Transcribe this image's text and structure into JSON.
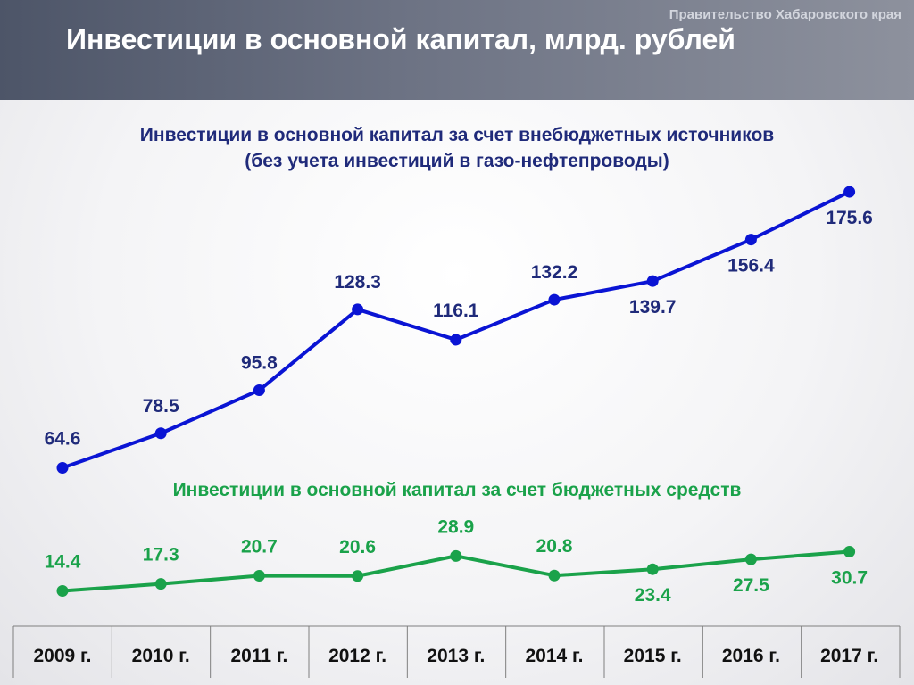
{
  "header": {
    "organization": "Правительство Хабаровского края",
    "title": "Инвестиции в основной капитал, млрд. рублей"
  },
  "chart_data": {
    "type": "line",
    "categories": [
      "2009 г.",
      "2010 г.",
      "2011 г.",
      "2012 г.",
      "2013 г.",
      "2014 г.",
      "2015 г.",
      "2016 г.",
      "2017 г."
    ],
    "grid": false,
    "series": [
      {
        "name": "Инвестиции в основной капитал за счет внебюджетных источников",
        "subtitle_line1": "Инвестиции в основной капитал за счет внебюджетных источников",
        "subtitle_line2": "(без учета инвестиций в газо-нефтепроводы)",
        "values": [
          64.6,
          78.5,
          95.8,
          128.3,
          116.1,
          132.2,
          139.7,
          156.4,
          175.6
        ],
        "labels": [
          "64.6",
          "78.5",
          "95.8",
          "128.3",
          "116.1",
          "132.2",
          "139.7",
          "156.4",
          "175.6"
        ],
        "color": "#0a14d4",
        "label_color": "#1f2a7a"
      },
      {
        "name": "Инвестиции в основной капитал за счет бюджетных средств",
        "subtitle": "Инвестиции в основной капитал за счет бюджетных средств",
        "values": [
          14.4,
          17.3,
          20.7,
          20.6,
          28.9,
          20.8,
          23.4,
          27.5,
          30.7
        ],
        "labels": [
          "14.4",
          "17.3",
          "20.7",
          "20.6",
          "28.9",
          "20.8",
          "23.4",
          "27.5",
          "30.7"
        ],
        "color": "#1aa24a",
        "label_color": "#1aa24a"
      }
    ]
  }
}
